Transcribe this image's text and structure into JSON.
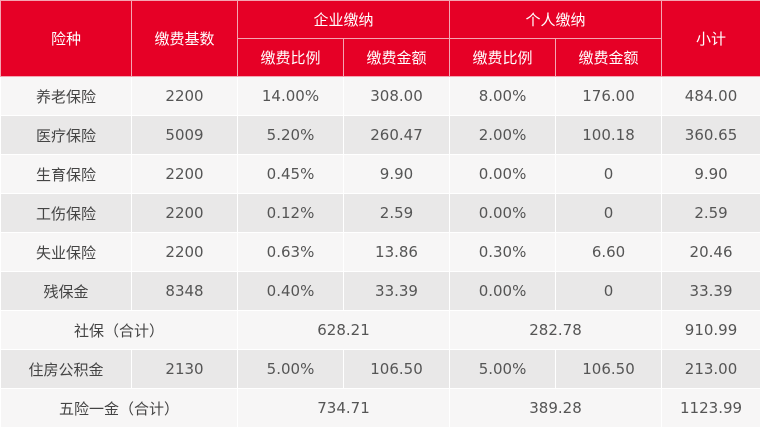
{
  "header": {
    "type": "险种",
    "base": "缴费基数",
    "company": "企业缴纳",
    "personal": "个人缴纳",
    "rate": "缴费比例",
    "amount": "缴费金额",
    "subtotal": "小计"
  },
  "rows": [
    {
      "type": "养老保险",
      "base": "2200",
      "c_rate": "14.00%",
      "c_amt": "308.00",
      "p_rate": "8.00%",
      "p_amt": "176.00",
      "subtotal": "484.00"
    },
    {
      "type": "医疗保险",
      "base": "5009",
      "c_rate": "5.20%",
      "c_amt": "260.47",
      "p_rate": "2.00%",
      "p_amt": "100.18",
      "subtotal": "360.65"
    },
    {
      "type": "生育保险",
      "base": "2200",
      "c_rate": "0.45%",
      "c_amt": "9.90",
      "p_rate": "0.00%",
      "p_amt": "0",
      "subtotal": "9.90"
    },
    {
      "type": "工伤保险",
      "base": "2200",
      "c_rate": "0.12%",
      "c_amt": "2.59",
      "p_rate": "0.00%",
      "p_amt": "0",
      "subtotal": "2.59"
    },
    {
      "type": "失业保险",
      "base": "2200",
      "c_rate": "0.63%",
      "c_amt": "13.86",
      "p_rate": "0.30%",
      "p_amt": "6.60",
      "subtotal": "20.46"
    },
    {
      "type": "残保金",
      "base": "8348",
      "c_rate": "0.40%",
      "c_amt": "33.39",
      "p_rate": "0.00%",
      "p_amt": "0",
      "subtotal": "33.39"
    }
  ],
  "social_total": {
    "label": "社保（合计）",
    "company": "628.21",
    "personal": "282.78",
    "subtotal": "910.99"
  },
  "housing": {
    "type": "住房公积金",
    "base": "2130",
    "c_rate": "5.00%",
    "c_amt": "106.50",
    "p_rate": "5.00%",
    "p_amt": "106.50",
    "subtotal": "213.00"
  },
  "grand_total": {
    "label": "五险一金（合计）",
    "company": "734.71",
    "personal": "389.28",
    "subtotal": "1123.99"
  }
}
